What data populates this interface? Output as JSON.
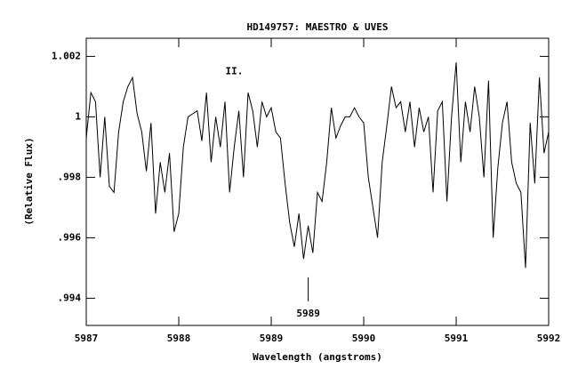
{
  "chart_data": {
    "type": "line",
    "title": "HD149757: MAESTRO & UVES",
    "x_label": "Wavelength (angstroms)",
    "y_label": "(Relative Flux)",
    "xlim": [
      5987,
      5992
    ],
    "ylim": [
      0.9931,
      1.0026
    ],
    "xticks": [
      5987,
      5988,
      5989,
      5990,
      5991,
      5992
    ],
    "yticks": [
      {
        "value": 0.994,
        "label": ".994"
      },
      {
        "value": 0.996,
        "label": ".996"
      },
      {
        "value": 0.998,
        "label": ".998"
      },
      1,
      {
        "value": 1.002,
        "label": "1.002"
      }
    ],
    "annotations": [
      {
        "text": "II.",
        "x": 5988.6,
        "y": 1.0015
      },
      {
        "text": "5989",
        "x": 5989.4,
        "y": 0.99425
      }
    ],
    "series": [
      {
        "color": "#000000",
        "x": [
          5987.0,
          5987.05,
          5987.1,
          5987.15,
          5987.2,
          5987.25,
          5987.3,
          5987.35,
          5987.4,
          5987.45,
          5987.5,
          5987.55,
          5987.6,
          5987.65,
          5987.7,
          5987.75,
          5987.8,
          5987.85,
          5987.9,
          5987.95,
          5988.0,
          5988.05,
          5988.1,
          5988.15,
          5988.2,
          5988.25,
          5988.3,
          5988.35,
          5988.4,
          5988.45,
          5988.5,
          5988.55,
          5988.6,
          5988.65,
          5988.7,
          5988.75,
          5988.8,
          5988.85,
          5988.9,
          5988.95,
          5989.0,
          5989.05,
          5989.1,
          5989.15,
          5989.2,
          5989.25,
          5989.3,
          5989.35,
          5989.4,
          5989.45,
          5989.5,
          5989.55,
          5989.6,
          5989.65,
          5989.7,
          5989.75,
          5989.8,
          5989.85,
          5989.9,
          5989.95,
          5990.0,
          5990.05,
          5990.1,
          5990.15,
          5990.2,
          5990.25,
          5990.3,
          5990.35,
          5990.4,
          5990.45,
          5990.5,
          5990.55,
          5990.6,
          5990.65,
          5990.7,
          5990.75,
          5990.8,
          5990.85,
          5990.9,
          5990.95,
          5991.0,
          5991.05,
          5991.1,
          5991.15,
          5991.2,
          5991.25,
          5991.3,
          5991.35,
          5991.4,
          5991.45,
          5991.5,
          5991.55,
          5991.6,
          5991.65,
          5991.7,
          5991.75,
          5991.8,
          5991.85,
          5991.9,
          5991.95,
          5992.0
        ],
        "values": [
          0.9993,
          1.0008,
          1.0005,
          0.998,
          1.0,
          0.9977,
          0.9975,
          0.9995,
          1.0005,
          1.001,
          1.0013,
          1.0001,
          0.9995,
          0.9982,
          0.9998,
          0.9968,
          0.9985,
          0.9975,
          0.9988,
          0.9962,
          0.9968,
          0.999,
          1.0,
          1.0001,
          1.0002,
          0.9992,
          1.0008,
          0.9985,
          1.0,
          0.999,
          1.0005,
          0.9975,
          0.999,
          1.0002,
          0.998,
          1.0008,
          1.0002,
          0.999,
          1.0005,
          1.0,
          1.0003,
          0.9995,
          0.9993,
          0.9978,
          0.9965,
          0.9957,
          0.9968,
          0.9953,
          0.9964,
          0.9955,
          0.9975,
          0.9972,
          0.9985,
          1.0003,
          0.9993,
          0.9997,
          1.0,
          1.0,
          1.0003,
          1.0,
          0.9998,
          0.998,
          0.997,
          0.996,
          0.9985,
          0.9997,
          1.001,
          1.0003,
          1.0005,
          0.9995,
          1.0005,
          0.999,
          1.0003,
          0.9995,
          1.0,
          0.9975,
          1.0002,
          1.0005,
          0.9972,
          1.0,
          1.0018,
          0.9985,
          1.0005,
          0.9995,
          1.001,
          1.0,
          0.998,
          1.0012,
          0.996,
          0.9983,
          0.9998,
          1.0005,
          0.9985,
          0.9978,
          0.9975,
          0.995,
          0.9998,
          0.9978,
          1.0013,
          0.9988,
          0.9995
        ]
      }
    ]
  }
}
